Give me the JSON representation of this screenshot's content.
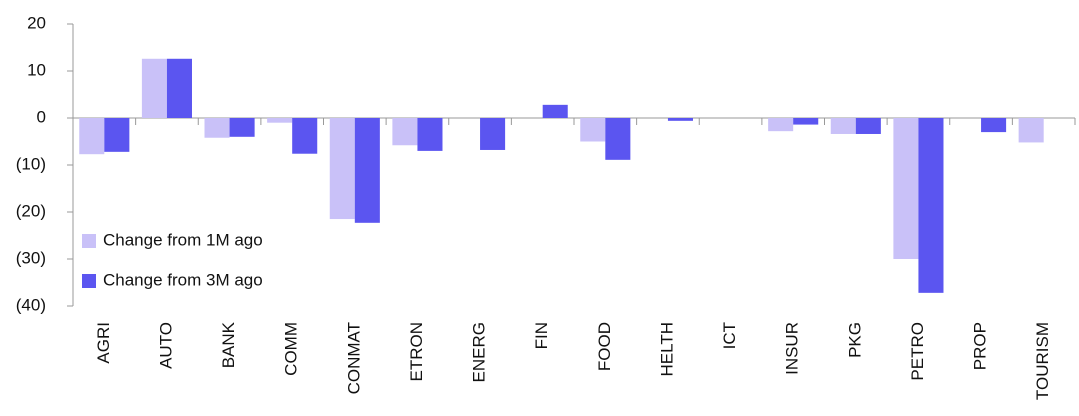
{
  "chart_data": {
    "type": "bar",
    "categories": [
      "AGRI",
      "AUTO",
      "BANK",
      "COMM",
      "CONMAT",
      "ETRON",
      "ENERG",
      "FIN",
      "FOOD",
      "HELTH",
      "ICT",
      "INSUR",
      "PKG",
      "PETRO",
      "PROP",
      "TOURISM"
    ],
    "series": [
      {
        "name": "Change from 1M ago",
        "color": "#c9c1f8",
        "values": [
          -7.7,
          12.6,
          -4.2,
          -1.0,
          -21.5,
          -5.8,
          0,
          0,
          -5.0,
          0,
          0,
          -2.8,
          -3.4,
          -30.0,
          0,
          -5.2
        ]
      },
      {
        "name": "Change from 3M ago",
        "color": "#5b55f0",
        "values": [
          -7.2,
          12.6,
          -4.0,
          -7.6,
          -22.3,
          -7.0,
          -6.8,
          2.8,
          -8.9,
          -0.6,
          0,
          -1.4,
          -3.4,
          -37.2,
          -3.0,
          0
        ]
      }
    ],
    "ylim": [
      -40,
      20
    ],
    "yticks": [
      {
        "value": -40,
        "label": "(40)"
      },
      {
        "value": -30,
        "label": "(30)"
      },
      {
        "value": -20,
        "label": "(20)"
      },
      {
        "value": -10,
        "label": "(10)"
      },
      0,
      10,
      20
    ],
    "legend": "lower left"
  }
}
